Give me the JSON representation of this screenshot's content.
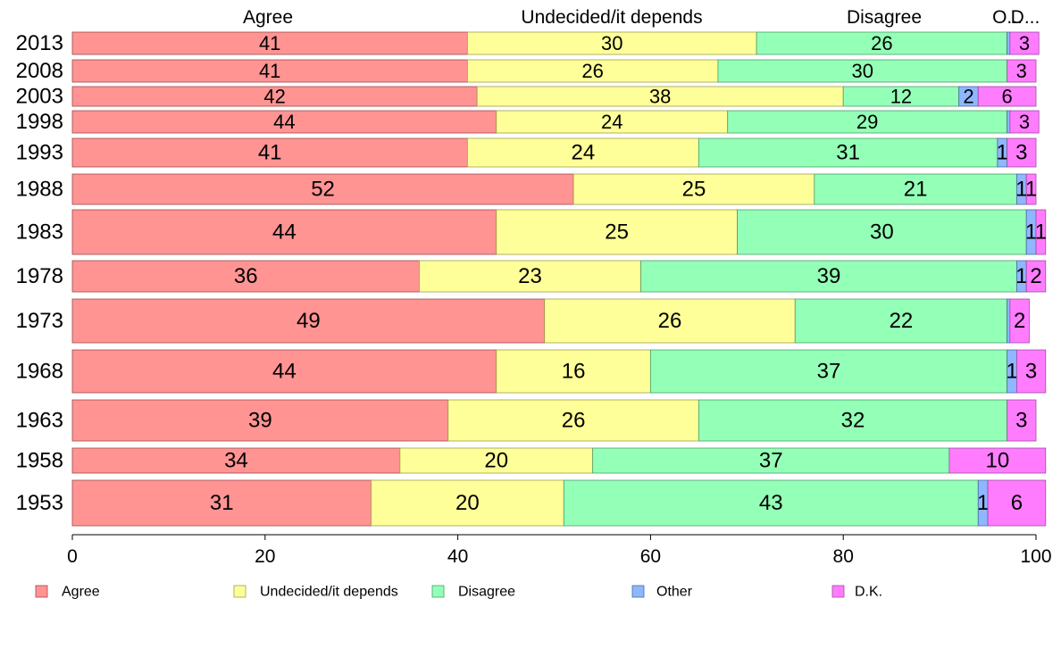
{
  "chart_data": {
    "type": "bar",
    "orientation": "horizontal",
    "stacked": true,
    "width_encodes": "sample size (bar thickness varies by year)",
    "xlim": [
      0,
      100
    ],
    "xticks": [
      0,
      20,
      40,
      60,
      80,
      100
    ],
    "grid": false,
    "legend_position": "bottom",
    "series_colors": [
      "#ff9493",
      "#ffff99",
      "#94ffb7",
      "#8eb7ff",
      "#ff7cff"
    ],
    "series": [
      {
        "name": "Agree",
        "values": [
          41,
          41,
          42,
          44,
          41,
          52,
          44,
          36,
          49,
          44,
          39,
          34,
          31
        ]
      },
      {
        "name": "Undecided/it depends",
        "values": [
          30,
          26,
          38,
          24,
          24,
          25,
          25,
          23,
          26,
          16,
          26,
          20,
          20
        ]
      },
      {
        "name": "Disagree",
        "values": [
          26,
          30,
          12,
          29,
          31,
          21,
          30,
          39,
          22,
          37,
          32,
          37,
          43
        ]
      },
      {
        "name": "Other",
        "values": [
          0.3,
          0,
          2,
          0.3,
          1,
          1,
          1,
          1,
          0.3,
          1,
          0,
          0,
          1
        ]
      },
      {
        "name": "D.K.",
        "values": [
          3,
          3,
          6,
          3,
          3,
          1,
          1,
          2,
          2,
          3,
          3,
          10,
          6
        ]
      }
    ],
    "segment_labels": [
      [
        "41",
        "30",
        "26",
        "",
        "3"
      ],
      [
        "41",
        "26",
        "30",
        "",
        "3"
      ],
      [
        "42",
        "38",
        "12",
        "2",
        "6"
      ],
      [
        "44",
        "24",
        "29",
        "",
        "3"
      ],
      [
        "41",
        "24",
        "31",
        "1",
        "3"
      ],
      [
        "52",
        "25",
        "21",
        "1",
        "1"
      ],
      [
        "44",
        "25",
        "30",
        "1",
        "1"
      ],
      [
        "36",
        "23",
        "39",
        "1",
        "2"
      ],
      [
        "49",
        "26",
        "22",
        "",
        "2"
      ],
      [
        "44",
        "16",
        "37",
        "1",
        "3"
      ],
      [
        "39",
        "26",
        "32",
        "",
        "3"
      ],
      [
        "34",
        "20",
        "37",
        "",
        "10"
      ],
      [
        "31",
        "20",
        "43",
        "1",
        "6"
      ]
    ],
    "categories": [
      "2013",
      "2008",
      "2003",
      "1998",
      "1993",
      "1988",
      "1983",
      "1978",
      "1973",
      "1968",
      "1963",
      "1958",
      "1953"
    ],
    "top_labels": [
      "Agree",
      "Undecided/it depends",
      "Disagree",
      "O...",
      "D..."
    ]
  }
}
